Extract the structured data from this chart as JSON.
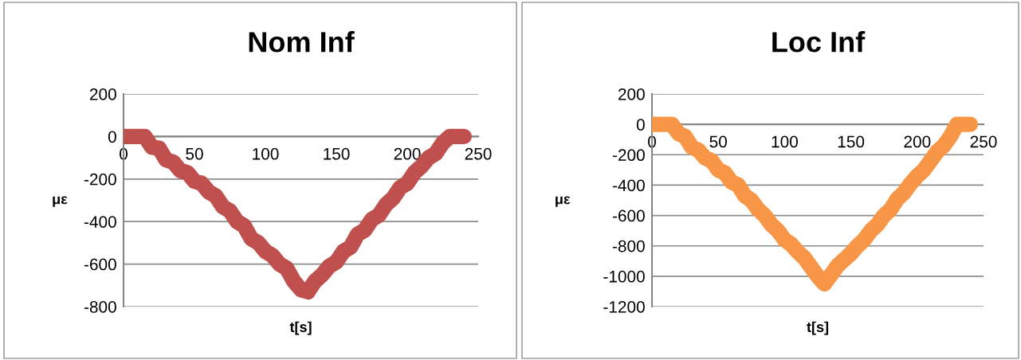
{
  "chart_data": [
    {
      "type": "line",
      "title": "Nom Inf",
      "xlabel": "t[s]",
      "ylabel": "με",
      "grid": "y",
      "xlim": [
        0,
        250
      ],
      "xticks": [
        0,
        50,
        100,
        150,
        200,
        250
      ],
      "ylim": [
        -800,
        200
      ],
      "yticks": [
        -800,
        -600,
        -400,
        -200,
        0,
        200
      ],
      "x": [
        0,
        5,
        10,
        15,
        20,
        25,
        30,
        35,
        40,
        45,
        50,
        55,
        60,
        65,
        70,
        75,
        80,
        85,
        90,
        95,
        100,
        105,
        110,
        115,
        120,
        125,
        130,
        135,
        140,
        145,
        150,
        155,
        160,
        165,
        170,
        175,
        180,
        185,
        190,
        195,
        200,
        205,
        210,
        215,
        220,
        225,
        230,
        235,
        240
      ],
      "series": [
        {
          "color": "#c0504d",
          "values": [
            0,
            0,
            0,
            0,
            -50,
            -55,
            -110,
            -120,
            -160,
            -170,
            -210,
            -220,
            -260,
            -280,
            -330,
            -350,
            -400,
            -420,
            -480,
            -500,
            -540,
            -560,
            -600,
            -620,
            -680,
            -720,
            -730,
            -680,
            -650,
            -610,
            -590,
            -540,
            -520,
            -460,
            -440,
            -390,
            -370,
            -320,
            -290,
            -240,
            -220,
            -170,
            -140,
            -100,
            -80,
            -30,
            0,
            0,
            0
          ]
        }
      ]
    },
    {
      "type": "line",
      "title": "Loc Inf",
      "xlabel": "t[s]",
      "ylabel": "με",
      "grid": "y",
      "xlim": [
        0,
        250
      ],
      "xticks": [
        0,
        50,
        100,
        150,
        200,
        250
      ],
      "ylim": [
        -1200,
        200
      ],
      "yticks": [
        -1200,
        -1000,
        -800,
        -600,
        -400,
        -200,
        0,
        200
      ],
      "x": [
        0,
        5,
        10,
        15,
        20,
        25,
        30,
        35,
        40,
        45,
        50,
        55,
        60,
        65,
        70,
        75,
        80,
        85,
        90,
        95,
        100,
        105,
        110,
        115,
        120,
        125,
        130,
        135,
        140,
        145,
        150,
        155,
        160,
        165,
        170,
        175,
        180,
        185,
        190,
        195,
        200,
        205,
        210,
        215,
        220,
        225,
        230,
        235,
        240
      ],
      "series": [
        {
          "color": "#f79646",
          "values": [
            0,
            0,
            0,
            0,
            -60,
            -80,
            -150,
            -170,
            -220,
            -240,
            -300,
            -320,
            -380,
            -400,
            -470,
            -500,
            -560,
            -600,
            -660,
            -700,
            -760,
            -790,
            -840,
            -880,
            -940,
            -1000,
            -1050,
            -990,
            -930,
            -890,
            -850,
            -800,
            -760,
            -700,
            -660,
            -600,
            -560,
            -490,
            -450,
            -390,
            -340,
            -300,
            -240,
            -180,
            -140,
            -80,
            0,
            0,
            0
          ]
        }
      ]
    }
  ]
}
